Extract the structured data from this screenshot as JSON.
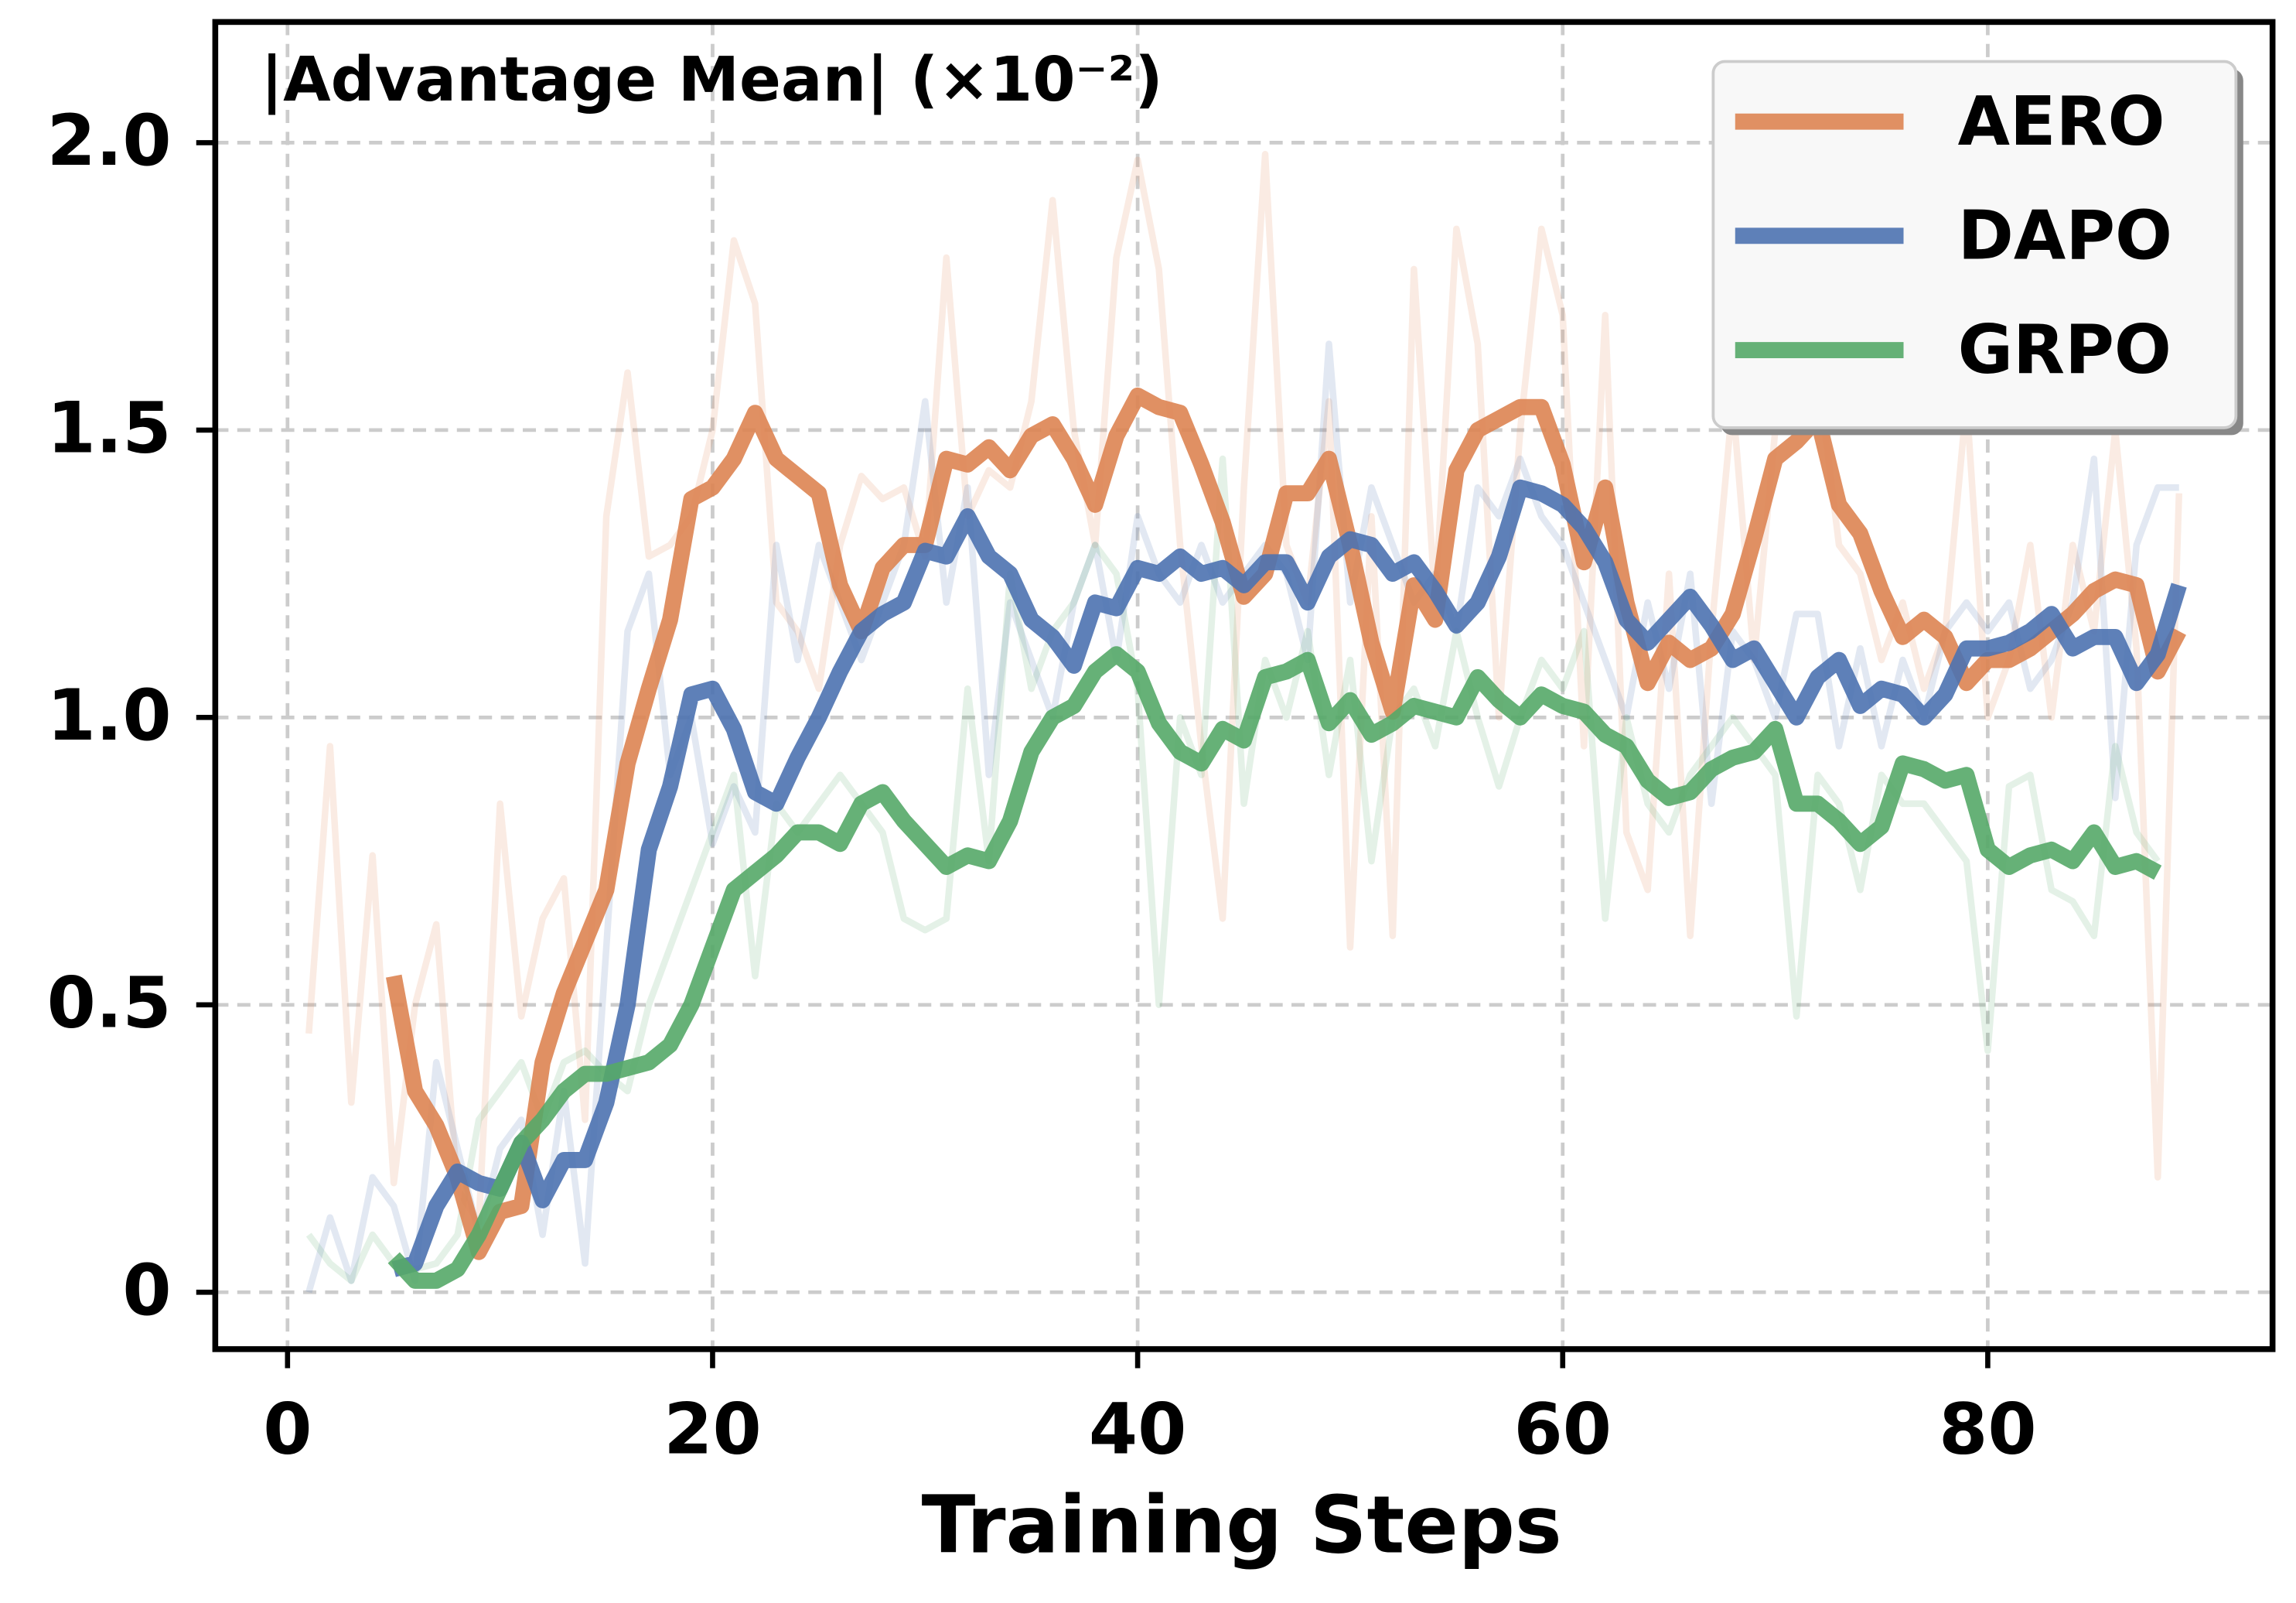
{
  "chart_data": {
    "type": "line",
    "title": "|Advantage Mean| (×10⁻²)",
    "xlabel": "Training Steps",
    "x": [
      1,
      2,
      3,
      4,
      5,
      6,
      7,
      8,
      9,
      10,
      11,
      12,
      13,
      14,
      15,
      16,
      17,
      18,
      19,
      20,
      21,
      22,
      23,
      24,
      25,
      26,
      27,
      28,
      29,
      30,
      31,
      32,
      33,
      34,
      35,
      36,
      37,
      38,
      39,
      40,
      41,
      42,
      43,
      44,
      45,
      46,
      47,
      48,
      49,
      50,
      51,
      52,
      53,
      54,
      55,
      56,
      57,
      58,
      59,
      60,
      61,
      62,
      63,
      64,
      65,
      66,
      67,
      68,
      69,
      70,
      71,
      72,
      73,
      74,
      75,
      76,
      77,
      78,
      79,
      80,
      81,
      82,
      83,
      84,
      85,
      86,
      87,
      88,
      89
    ],
    "xlim": [
      -3.4,
      93.4
    ],
    "ylim": [
      -0.099,
      2.21
    ],
    "xticks": [
      0,
      20,
      40,
      60,
      80
    ],
    "yticks": [
      0,
      0.5,
      {
        "value": 1,
        "label": "1.0"
      },
      1.5,
      {
        "value": 2,
        "label": "2.0"
      }
    ],
    "grid": true,
    "legend": "upper right",
    "series": [
      {
        "name": "AERO",
        "color": "#dd8452",
        "values": [
          null,
          null,
          null,
          null,
          0.55,
          0.35,
          0.29,
          0.2,
          0.07,
          0.14,
          0.15,
          0.4,
          0.52,
          0.61,
          0.7,
          0.92,
          1.05,
          1.17,
          1.38,
          1.4,
          1.45,
          1.53,
          1.45,
          1.42,
          1.39,
          1.23,
          1.15,
          1.26,
          1.3,
          1.3,
          1.45,
          1.44,
          1.47,
          1.43,
          1.49,
          1.51,
          1.45,
          1.37,
          1.49,
          1.56,
          1.54,
          1.53,
          1.44,
          1.34,
          1.21,
          1.25,
          1.39,
          1.39,
          1.45,
          1.3,
          1.13,
          1.01,
          1.23,
          1.17,
          1.43,
          1.5,
          1.52,
          1.54,
          1.54,
          1.44,
          1.27,
          1.4,
          1.2,
          1.06,
          1.13,
          1.1,
          1.12,
          1.18,
          1.31,
          1.45,
          1.48,
          1.52,
          1.37,
          1.32,
          1.22,
          1.14,
          1.17,
          1.14,
          1.06,
          1.1,
          1.1,
          1.12,
          1.15,
          1.18,
          1.22,
          1.24,
          1.23,
          1.08,
          1.15
        ],
        "raw_values": [
          0.45,
          0.95,
          0.33,
          0.76,
          0.19,
          0.5,
          0.64,
          0.18,
          0.12,
          0.85,
          0.48,
          0.65,
          0.72,
          0.3,
          1.35,
          1.6,
          1.28,
          1.3,
          1.35,
          1.5,
          1.83,
          1.72,
          1.2,
          1.15,
          1.05,
          1.3,
          1.42,
          1.38,
          1.4,
          1.28,
          1.8,
          1.35,
          1.43,
          1.4,
          1.55,
          1.9,
          1.5,
          1.3,
          1.8,
          1.97,
          1.78,
          1.3,
          0.95,
          0.65,
          1.4,
          1.98,
          1.3,
          1.2,
          1.55,
          0.6,
          1.35,
          0.62,
          1.78,
          1.2,
          1.85,
          1.65,
          1.0,
          1.5,
          1.85,
          1.7,
          0.95,
          1.7,
          0.8,
          0.7,
          1.25,
          0.62,
          1.15,
          1.55,
          1.1,
          1.5,
          1.7,
          1.6,
          1.3,
          1.25,
          1.1,
          1.2,
          1.05,
          1.15,
          1.55,
          1.0,
          1.1,
          1.3,
          1.0,
          1.3,
          1.15,
          1.5,
          1.12,
          0.2,
          1.39
        ]
      },
      {
        "name": "DAPO",
        "color": "#4c72b0",
        "values": [
          null,
          null,
          null,
          null,
          0.04,
          0.05,
          0.15,
          0.21,
          0.19,
          0.18,
          0.26,
          0.16,
          0.23,
          0.23,
          0.33,
          0.5,
          0.77,
          0.88,
          1.04,
          1.05,
          0.98,
          0.87,
          0.85,
          0.93,
          1.0,
          1.08,
          1.15,
          1.18,
          1.2,
          1.29,
          1.28,
          1.35,
          1.28,
          1.25,
          1.17,
          1.14,
          1.09,
          1.2,
          1.19,
          1.26,
          1.25,
          1.28,
          1.25,
          1.26,
          1.23,
          1.27,
          1.27,
          1.2,
          1.28,
          1.31,
          1.3,
          1.25,
          1.27,
          1.22,
          1.16,
          1.2,
          1.28,
          1.4,
          1.39,
          1.37,
          1.33,
          1.27,
          1.17,
          1.13,
          1.17,
          1.21,
          1.16,
          1.1,
          1.12,
          1.06,
          1.0,
          1.07,
          1.1,
          1.02,
          1.05,
          1.04,
          1.0,
          1.04,
          1.12,
          1.12,
          1.13,
          1.15,
          1.18,
          1.12,
          1.14,
          1.14,
          1.06,
          1.11,
          1.23
        ],
        "raw_values": [
          0.0,
          0.13,
          0.02,
          0.2,
          0.15,
          0.02,
          0.4,
          0.25,
          0.1,
          0.25,
          0.3,
          0.1,
          0.35,
          0.05,
          0.6,
          1.15,
          1.25,
          0.9,
          1.0,
          0.78,
          0.88,
          0.8,
          1.3,
          1.1,
          1.3,
          1.2,
          1.1,
          1.2,
          1.3,
          1.55,
          1.2,
          1.4,
          0.9,
          1.2,
          1.1,
          1.0,
          1.2,
          1.3,
          1.1,
          1.35,
          1.25,
          1.2,
          1.3,
          1.2,
          1.25,
          1.3,
          1.25,
          1.1,
          1.65,
          1.2,
          1.4,
          1.3,
          1.2,
          1.25,
          1.15,
          1.4,
          1.35,
          1.45,
          1.35,
          1.3,
          1.2,
          1.1,
          1.0,
          1.2,
          1.05,
          1.25,
          0.85,
          1.15,
          1.1,
          1.0,
          1.18,
          1.18,
          0.95,
          1.12,
          0.95,
          1.1,
          1.0,
          1.15,
          1.2,
          1.15,
          1.2,
          1.05,
          1.1,
          1.2,
          1.45,
          0.86,
          1.3,
          1.4,
          1.4
        ]
      },
      {
        "name": "GRPO",
        "color": "#55a868",
        "values": [
          null,
          null,
          null,
          null,
          0.06,
          0.02,
          0.02,
          0.04,
          0.1,
          0.18,
          0.26,
          0.3,
          0.35,
          0.38,
          0.38,
          0.39,
          0.4,
          0.43,
          0.5,
          0.6,
          0.7,
          0.73,
          0.76,
          0.8,
          0.8,
          0.78,
          0.85,
          0.87,
          0.82,
          0.78,
          0.74,
          0.76,
          0.75,
          0.82,
          0.94,
          1.0,
          1.02,
          1.08,
          1.11,
          1.08,
          0.99,
          0.94,
          0.92,
          0.98,
          0.96,
          1.07,
          1.08,
          1.1,
          0.99,
          1.03,
          0.97,
          0.99,
          1.02,
          1.01,
          1.0,
          1.07,
          1.03,
          1.0,
          1.04,
          1.02,
          1.01,
          0.97,
          0.95,
          0.89,
          0.86,
          0.87,
          0.91,
          0.93,
          0.94,
          0.98,
          0.85,
          0.85,
          0.82,
          0.78,
          0.81,
          0.92,
          0.91,
          0.89,
          0.9,
          0.77,
          0.74,
          0.76,
          0.77,
          0.75,
          0.8,
          0.74,
          0.75,
          0.73,
          null
        ],
        "raw_values": [
          0.1,
          0.05,
          0.02,
          0.1,
          0.05,
          0.04,
          0.05,
          0.1,
          0.3,
          0.35,
          0.4,
          0.3,
          0.4,
          0.42,
          0.38,
          0.35,
          0.5,
          0.6,
          0.7,
          0.8,
          0.9,
          0.55,
          0.85,
          0.8,
          0.85,
          0.9,
          0.85,
          0.8,
          0.65,
          0.63,
          0.65,
          1.05,
          0.75,
          1.25,
          1.05,
          1.15,
          1.2,
          1.3,
          1.25,
          1.05,
          0.5,
          1.0,
          0.9,
          1.45,
          0.85,
          1.1,
          1.0,
          1.15,
          0.9,
          1.1,
          0.75,
          1.0,
          1.05,
          0.95,
          1.15,
          1.0,
          0.88,
          1.0,
          1.1,
          1.05,
          1.15,
          0.65,
          1.0,
          0.85,
          0.8,
          0.9,
          0.95,
          1.0,
          0.95,
          0.9,
          0.48,
          0.9,
          0.85,
          0.7,
          0.9,
          0.85,
          0.85,
          0.8,
          0.75,
          0.42,
          0.88,
          0.9,
          0.7,
          0.68,
          0.62,
          0.95,
          0.8,
          0.75,
          null
        ]
      }
    ]
  }
}
